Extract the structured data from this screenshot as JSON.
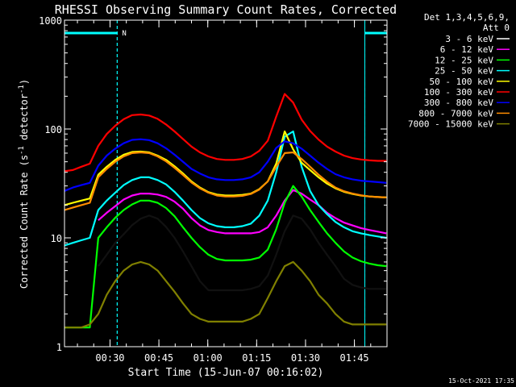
{
  "chart_data": {
    "type": "line",
    "title": "RHESSI Observing Summary Count Rates, Corrected",
    "xlabel": "Start Time (15-Jun-07 00:16:02)",
    "ylabel_main": "Corrected Count Rate (s",
    "ylabel_sup": "-1",
    "ylabel_mid": " detector",
    "ylabel_end": ")",
    "yscale": "log",
    "ylim": [
      1,
      1000
    ],
    "xlim_minutes": [
      16.03,
      115.0
    ],
    "x_unit": "minutes after 00:00 UT, 15-Jun-07",
    "x_ticks": [
      {
        "label": "00:30",
        "value": 30
      },
      {
        "label": "00:45",
        "value": 45
      },
      {
        "label": "01:00",
        "value": 60
      },
      {
        "label": "01:15",
        "value": 75
      },
      {
        "label": "01:30",
        "value": 90
      },
      {
        "label": "01:45",
        "value": 105
      }
    ],
    "y_ticks": [
      {
        "label": "1000",
        "value": 1000
      },
      {
        "label": "100",
        "value": 100
      },
      {
        "label": "10",
        "value": 10
      },
      {
        "label": "1",
        "value": 1
      }
    ],
    "legend_header": [
      "Det 1,3,4,5,6,9,",
      "Att 0"
    ],
    "legend_placement": "top-right",
    "series": [
      {
        "name": "3 - 6 keV",
        "color": "#000000",
        "values": [
          null,
          null,
          null,
          null,
          5.5,
          7,
          9,
          10.8,
          13.1,
          15,
          16,
          15,
          12.6,
          10,
          7.5,
          5.5,
          4,
          3.3,
          3.3,
          3.3,
          3.3,
          3.3,
          3.4,
          3.6,
          4.5,
          7,
          11.5,
          16,
          15,
          12,
          9,
          7,
          5.5,
          4.2,
          3.7,
          3.5,
          3.4,
          3.4,
          3.4
        ]
      },
      {
        "name": "6 - 12 keV",
        "color": "#ff00ff",
        "values": [
          null,
          null,
          null,
          null,
          14.5,
          17,
          19.5,
          22.5,
          24.5,
          25.5,
          25.5,
          25,
          23.8,
          21.5,
          18.5,
          15.2,
          13,
          11.8,
          11.3,
          11,
          11,
          11,
          11,
          11.3,
          12.5,
          16,
          22,
          27.5,
          25.5,
          22.5,
          20,
          17,
          15.2,
          13.8,
          13,
          12.3,
          11.8,
          11.4,
          11
        ]
      },
      {
        "name": "12 - 25 keV",
        "color": "#00ff00",
        "values": [
          1.5,
          1.5,
          1.5,
          1.5,
          10,
          12.5,
          15.3,
          18,
          20.3,
          22,
          22,
          21,
          18.8,
          15.8,
          12.5,
          10,
          8.2,
          7,
          6.4,
          6.2,
          6.2,
          6.2,
          6.3,
          6.6,
          7.8,
          12,
          21,
          30,
          24,
          18,
          14,
          11,
          9,
          7.5,
          6.6,
          6.1,
          5.8,
          5.6,
          5.5
        ]
      },
      {
        "name": "25 - 50 keV",
        "color": "#00ffff",
        "values": [
          8.5,
          9,
          9.5,
          10,
          18,
          22,
          26,
          30.5,
          34,
          36,
          36,
          34,
          31,
          26.5,
          22,
          18,
          15.2,
          13.6,
          12.8,
          12.5,
          12.5,
          12.8,
          13.5,
          16,
          22,
          40,
          85,
          95,
          45,
          27,
          20,
          16.5,
          14,
          12.5,
          11.5,
          11,
          10.6,
          10.3,
          10
        ]
      },
      {
        "name": "50 - 100 keV",
        "color": "#ffff00",
        "values": [
          20,
          21,
          22,
          23,
          38,
          45,
          52,
          58,
          61.5,
          62,
          61,
          57,
          52,
          45.5,
          39,
          33,
          29,
          26.3,
          25,
          24.5,
          24.5,
          24.8,
          25.5,
          28,
          33,
          48,
          95,
          65,
          49,
          42,
          36,
          31.5,
          28.5,
          26.5,
          25.3,
          24.5,
          24,
          23.7,
          23.5
        ]
      },
      {
        "name": "100 - 300 keV",
        "color": "#ff0000",
        "values": [
          41,
          42,
          45,
          48,
          70,
          90,
          107,
          123,
          134,
          136,
          133,
          124,
          110,
          95,
          81,
          69,
          61,
          56,
          53,
          52,
          52,
          53,
          56,
          63,
          78,
          130,
          210,
          175,
          122,
          96,
          80,
          69,
          62,
          57,
          54,
          52.5,
          51.5,
          51,
          51
        ]
      },
      {
        "name": "300 - 800 keV",
        "color": "#0000ff",
        "values": [
          27,
          29,
          30.5,
          32,
          46,
          57,
          66,
          74,
          79.5,
          80.5,
          79,
          74,
          66.5,
          58,
          50,
          43,
          39,
          36,
          34.5,
          34,
          34,
          34.5,
          36,
          40,
          50,
          67,
          77,
          74,
          66,
          57,
          49,
          43,
          38.5,
          36,
          34.5,
          33.5,
          33,
          32.5,
          32
        ]
      },
      {
        "name": "800 - 7000 keV",
        "color": "#ff8c00",
        "values": [
          18,
          19,
          20,
          21,
          36,
          43,
          50,
          56,
          60,
          61,
          60,
          56,
          50.5,
          44,
          37.8,
          32.3,
          28.5,
          26,
          24.5,
          24,
          24,
          24.3,
          25.3,
          27.8,
          33,
          45,
          60,
          61,
          53,
          45,
          38,
          32.8,
          29,
          26.8,
          25.5,
          24.6,
          24,
          23.7,
          23.5
        ]
      },
      {
        "name": "7000 - 15000 keV",
        "color": "#808000",
        "values": [
          1.5,
          1.5,
          1.5,
          1.6,
          2,
          3,
          4,
          5,
          5.7,
          6,
          5.7,
          5,
          4,
          3.2,
          2.5,
          2,
          1.8,
          1.7,
          1.7,
          1.7,
          1.7,
          1.7,
          1.8,
          2,
          2.8,
          4,
          5.5,
          6,
          5,
          4,
          3,
          2.5,
          2,
          1.7,
          1.6,
          1.6,
          1.6,
          1.6,
          1.6
        ]
      }
    ],
    "x": [
      16.03,
      18.6,
      21.2,
      23.8,
      26.4,
      29,
      31.6,
      34.2,
      36.8,
      39.4,
      42,
      44.6,
      47.2,
      49.8,
      52.4,
      55,
      57.6,
      60.2,
      62.8,
      65.4,
      68,
      70.6,
      73.2,
      75.8,
      78.4,
      81,
      83.6,
      86.2,
      88.8,
      91.4,
      94,
      96.6,
      99.2,
      101.8,
      104.4,
      107,
      109.6,
      112.2,
      114.8
    ],
    "annotations": [
      {
        "type": "night",
        "text": "N",
        "start": 32.2,
        "end": 108.2
      },
      {
        "type": "day",
        "text": "",
        "start": 16.03,
        "end": 32.2
      },
      {
        "type": "day",
        "text": "",
        "start": 108.2,
        "end": 115.0
      }
    ],
    "footer_stamp": "15-Oct-2021 17:35"
  }
}
